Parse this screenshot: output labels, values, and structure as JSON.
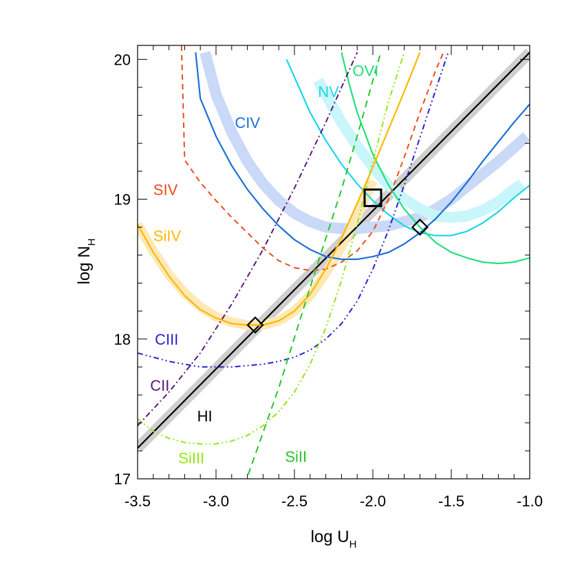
{
  "chart_data": {
    "type": "line",
    "title": "",
    "xlabel": "log U",
    "xlabel_sub": "H",
    "ylabel": "log N",
    "ylabel_sub": "H",
    "xlim": [
      -3.5,
      -1.0
    ],
    "ylim": [
      17.0,
      20.1
    ],
    "grid": false,
    "x_ticks": [
      -3.5,
      -3.0,
      -2.5,
      -2.0,
      -1.5,
      -1.0
    ],
    "x_tick_labels": [
      "-3.5",
      "-3.0",
      "-2.5",
      "-2.0",
      "-1.5",
      "-1.0"
    ],
    "y_ticks": [
      17,
      18,
      19,
      20
    ],
    "y_tick_labels": [
      "17",
      "18",
      "19",
      "20"
    ],
    "bands": [
      {
        "name": "HI band",
        "color": "#cfcfcf",
        "width": 16,
        "points": [
          [
            -3.5,
            17.22
          ],
          [
            -1.0,
            20.05
          ]
        ]
      },
      {
        "name": "CIV band",
        "color": "#c9d9f7",
        "width": 16,
        "points": [
          [
            -3.07,
            20.05
          ],
          [
            -3.0,
            19.75
          ],
          [
            -2.9,
            19.48
          ],
          [
            -2.8,
            19.27
          ],
          [
            -2.7,
            19.11
          ],
          [
            -2.6,
            18.99
          ],
          [
            -2.5,
            18.9
          ],
          [
            -2.4,
            18.84
          ],
          [
            -2.3,
            18.8
          ],
          [
            -2.2,
            18.79
          ],
          [
            -2.1,
            18.79
          ],
          [
            -2.0,
            18.8
          ],
          [
            -1.9,
            18.81
          ],
          [
            -1.8,
            18.84
          ],
          [
            -1.7,
            18.87
          ],
          [
            -1.6,
            18.93
          ],
          [
            -1.5,
            19.0
          ],
          [
            -1.4,
            19.09
          ],
          [
            -1.3,
            19.18
          ],
          [
            -1.2,
            19.27
          ],
          [
            -1.1,
            19.37
          ],
          [
            -1.02,
            19.45
          ]
        ]
      },
      {
        "name": "NV band",
        "color": "#c8f6fb",
        "width": 16,
        "points": [
          [
            -2.35,
            19.85
          ],
          [
            -2.2,
            19.55
          ],
          [
            -2.1,
            19.38
          ],
          [
            -2.0,
            19.23
          ],
          [
            -1.9,
            19.1
          ],
          [
            -1.8,
            19.0
          ],
          [
            -1.7,
            18.93
          ],
          [
            -1.6,
            18.88
          ],
          [
            -1.5,
            18.87
          ],
          [
            -1.4,
            18.88
          ],
          [
            -1.3,
            18.92
          ],
          [
            -1.2,
            18.98
          ],
          [
            -1.1,
            19.07
          ],
          [
            -1.05,
            19.11
          ]
        ]
      },
      {
        "name": "SiIV band",
        "color": "#fde8b8",
        "width": 14,
        "points": [
          [
            -3.5,
            18.82
          ],
          [
            -3.4,
            18.63
          ],
          [
            -3.3,
            18.46
          ],
          [
            -3.2,
            18.33
          ],
          [
            -3.1,
            18.23
          ],
          [
            -3.0,
            18.16
          ],
          [
            -2.9,
            18.12
          ],
          [
            -2.8,
            18.1
          ],
          [
            -2.7,
            18.1
          ],
          [
            -2.6,
            18.13
          ],
          [
            -2.5,
            18.2
          ],
          [
            -2.4,
            18.31
          ],
          [
            -2.3,
            18.47
          ],
          [
            -2.2,
            18.66
          ],
          [
            -2.1,
            18.88
          ],
          [
            -2.0,
            19.13
          ]
        ]
      }
    ],
    "series": [
      {
        "name": "HI",
        "color": "#000000",
        "dash": "",
        "width": 2.2,
        "points": [
          [
            -3.5,
            17.22
          ],
          [
            -1.0,
            20.05
          ]
        ]
      },
      {
        "name": "CIV",
        "color": "#1b6fd8",
        "dash": "",
        "width": 2.2,
        "points": [
          [
            -3.13,
            20.05
          ],
          [
            -3.1,
            19.72
          ],
          [
            -3.0,
            19.45
          ],
          [
            -2.9,
            19.24
          ],
          [
            -2.8,
            19.07
          ],
          [
            -2.7,
            18.93
          ],
          [
            -2.6,
            18.81
          ],
          [
            -2.5,
            18.71
          ],
          [
            -2.4,
            18.64
          ],
          [
            -2.3,
            18.59
          ],
          [
            -2.2,
            18.57
          ],
          [
            -2.1,
            18.57
          ],
          [
            -2.0,
            18.59
          ],
          [
            -1.9,
            18.62
          ],
          [
            -1.8,
            18.68
          ],
          [
            -1.7,
            18.76
          ],
          [
            -1.6,
            18.86
          ],
          [
            -1.5,
            18.98
          ],
          [
            -1.4,
            19.12
          ],
          [
            -1.3,
            19.27
          ],
          [
            -1.2,
            19.41
          ],
          [
            -1.1,
            19.55
          ],
          [
            -1.0,
            19.68
          ]
        ]
      },
      {
        "name": "NV",
        "color": "#19d6ea",
        "dash": "",
        "width": 2.2,
        "points": [
          [
            -2.55,
            20.0
          ],
          [
            -2.4,
            19.62
          ],
          [
            -2.3,
            19.42
          ],
          [
            -2.2,
            19.25
          ],
          [
            -2.1,
            19.11
          ],
          [
            -2.0,
            18.99
          ],
          [
            -1.9,
            18.89
          ],
          [
            -1.8,
            18.81
          ],
          [
            -1.7,
            18.76
          ],
          [
            -1.6,
            18.74
          ],
          [
            -1.5,
            18.74
          ],
          [
            -1.4,
            18.77
          ],
          [
            -1.3,
            18.83
          ],
          [
            -1.2,
            18.91
          ],
          [
            -1.1,
            19.01
          ],
          [
            -1.0,
            19.1
          ]
        ]
      },
      {
        "name": "OVI",
        "color": "#22e07a",
        "dash": "",
        "width": 2.2,
        "points": [
          [
            -2.2,
            20.05
          ],
          [
            -2.15,
            19.82
          ],
          [
            -2.1,
            19.62
          ],
          [
            -2.0,
            19.32
          ],
          [
            -1.9,
            19.1
          ],
          [
            -1.8,
            18.93
          ],
          [
            -1.7,
            18.8
          ],
          [
            -1.6,
            18.69
          ],
          [
            -1.5,
            18.62
          ],
          [
            -1.4,
            18.58
          ],
          [
            -1.3,
            18.55
          ],
          [
            -1.2,
            18.54
          ],
          [
            -1.1,
            18.55
          ],
          [
            -1.0,
            18.58
          ]
        ]
      },
      {
        "name": "SIV",
        "color": "#ee4b1c",
        "dash": "8,6",
        "width": 2.0,
        "points": [
          [
            -3.22,
            20.1
          ],
          [
            -3.21,
            19.7
          ],
          [
            -3.2,
            19.28
          ],
          [
            -3.1,
            19.12
          ],
          [
            -3.0,
            18.99
          ],
          [
            -2.9,
            18.87
          ],
          [
            -2.8,
            18.76
          ],
          [
            -2.7,
            18.65
          ],
          [
            -2.6,
            18.56
          ],
          [
            -2.5,
            18.51
          ],
          [
            -2.4,
            18.49
          ],
          [
            -2.3,
            18.5
          ],
          [
            -2.2,
            18.55
          ],
          [
            -2.1,
            18.63
          ],
          [
            -2.0,
            18.77
          ],
          [
            -1.9,
            19.0
          ],
          [
            -1.8,
            19.3
          ],
          [
            -1.7,
            19.62
          ],
          [
            -1.6,
            19.92
          ],
          [
            -1.55,
            20.05
          ]
        ]
      },
      {
        "name": "SiIV",
        "color": "#ffb800",
        "dash": "",
        "width": 2.2,
        "points": [
          [
            -3.5,
            18.82
          ],
          [
            -3.4,
            18.62
          ],
          [
            -3.3,
            18.45
          ],
          [
            -3.2,
            18.31
          ],
          [
            -3.1,
            18.21
          ],
          [
            -3.0,
            18.15
          ],
          [
            -2.9,
            18.11
          ],
          [
            -2.8,
            18.1
          ],
          [
            -2.7,
            18.1
          ],
          [
            -2.6,
            18.13
          ],
          [
            -2.5,
            18.2
          ],
          [
            -2.4,
            18.32
          ],
          [
            -2.3,
            18.5
          ],
          [
            -2.2,
            18.72
          ],
          [
            -2.1,
            18.97
          ],
          [
            -2.0,
            19.23
          ],
          [
            -1.9,
            19.5
          ],
          [
            -1.8,
            19.77
          ],
          [
            -1.7,
            20.05
          ]
        ]
      },
      {
        "name": "CIII",
        "color": "#2a1fd0",
        "dash": "8,4,2,4,2,4",
        "width": 2.0,
        "points": [
          [
            -3.5,
            17.9
          ],
          [
            -3.4,
            17.87
          ],
          [
            -3.3,
            17.84
          ],
          [
            -3.2,
            17.82
          ],
          [
            -3.1,
            17.8
          ],
          [
            -3.0,
            17.8
          ],
          [
            -2.9,
            17.8
          ],
          [
            -2.8,
            17.81
          ],
          [
            -2.7,
            17.82
          ],
          [
            -2.6,
            17.84
          ],
          [
            -2.5,
            17.87
          ],
          [
            -2.4,
            17.92
          ],
          [
            -2.3,
            18.0
          ],
          [
            -2.2,
            18.11
          ],
          [
            -2.1,
            18.27
          ],
          [
            -2.0,
            18.5
          ],
          [
            -1.9,
            18.78
          ],
          [
            -1.8,
            19.1
          ],
          [
            -1.7,
            19.44
          ],
          [
            -1.6,
            19.78
          ],
          [
            -1.52,
            20.05
          ]
        ]
      },
      {
        "name": "CII",
        "color": "#5a1878",
        "dash": "8,4,2,4",
        "width": 2.0,
        "points": [
          [
            -3.5,
            17.38
          ],
          [
            -3.3,
            17.62
          ],
          [
            -3.1,
            17.9
          ],
          [
            -2.9,
            18.25
          ],
          [
            -2.7,
            18.64
          ],
          [
            -2.5,
            19.08
          ],
          [
            -2.3,
            19.55
          ],
          [
            -2.1,
            20.05
          ]
        ]
      },
      {
        "name": "SiIII",
        "color": "#93e614",
        "dash": "8,4,2,4,2,4",
        "width": 2.0,
        "points": [
          [
            -3.5,
            17.43
          ],
          [
            -3.4,
            17.34
          ],
          [
            -3.3,
            17.29
          ],
          [
            -3.2,
            17.26
          ],
          [
            -3.1,
            17.25
          ],
          [
            -3.0,
            17.25
          ],
          [
            -2.9,
            17.27
          ],
          [
            -2.8,
            17.31
          ],
          [
            -2.7,
            17.38
          ],
          [
            -2.6,
            17.48
          ],
          [
            -2.5,
            17.62
          ],
          [
            -2.4,
            17.82
          ],
          [
            -2.3,
            18.08
          ],
          [
            -2.2,
            18.42
          ],
          [
            -2.1,
            18.82
          ],
          [
            -2.0,
            19.27
          ],
          [
            -1.9,
            19.7
          ],
          [
            -1.8,
            20.05
          ]
        ]
      },
      {
        "name": "SiII",
        "color": "#27c52b",
        "dash": "10,7",
        "width": 2.0,
        "points": [
          [
            -2.82,
            16.95
          ],
          [
            -2.6,
            17.65
          ],
          [
            -2.4,
            18.37
          ],
          [
            -2.2,
            19.07
          ],
          [
            -2.1,
            19.45
          ],
          [
            -2.0,
            19.85
          ],
          [
            -1.95,
            20.05
          ]
        ]
      }
    ],
    "labels": [
      {
        "text": "CIV",
        "color": "#1b6fd8",
        "x": -2.88,
        "y": 19.51
      },
      {
        "text": "NV",
        "color": "#19d6ea",
        "x": -2.35,
        "y": 19.73
      },
      {
        "text": "OVI",
        "color": "#22e07a",
        "x": -2.13,
        "y": 19.88
      },
      {
        "text": "SIV",
        "color": "#ee4b1c",
        "x": -3.4,
        "y": 19.03
      },
      {
        "text": "SiIV",
        "color": "#ffb800",
        "x": -3.4,
        "y": 18.7
      },
      {
        "text": "CIII",
        "color": "#2a1fd0",
        "x": -3.39,
        "y": 17.96
      },
      {
        "text": "CII",
        "color": "#5a1878",
        "x": -3.42,
        "y": 17.63
      },
      {
        "text": "HI",
        "color": "#000000",
        "x": -3.12,
        "y": 17.41
      },
      {
        "text": "SiIII",
        "color": "#93e614",
        "x": -3.24,
        "y": 17.11
      },
      {
        "text": "SiII",
        "color": "#27c52b",
        "x": -2.56,
        "y": 17.12
      }
    ],
    "markers": [
      {
        "name": "square",
        "shape": "square",
        "x": -2.0,
        "y": 19.01
      },
      {
        "name": "diamond-left",
        "shape": "diamond",
        "x": -2.75,
        "y": 18.1
      },
      {
        "name": "diamond-right",
        "shape": "diamond",
        "x": -1.7,
        "y": 18.8
      }
    ]
  }
}
